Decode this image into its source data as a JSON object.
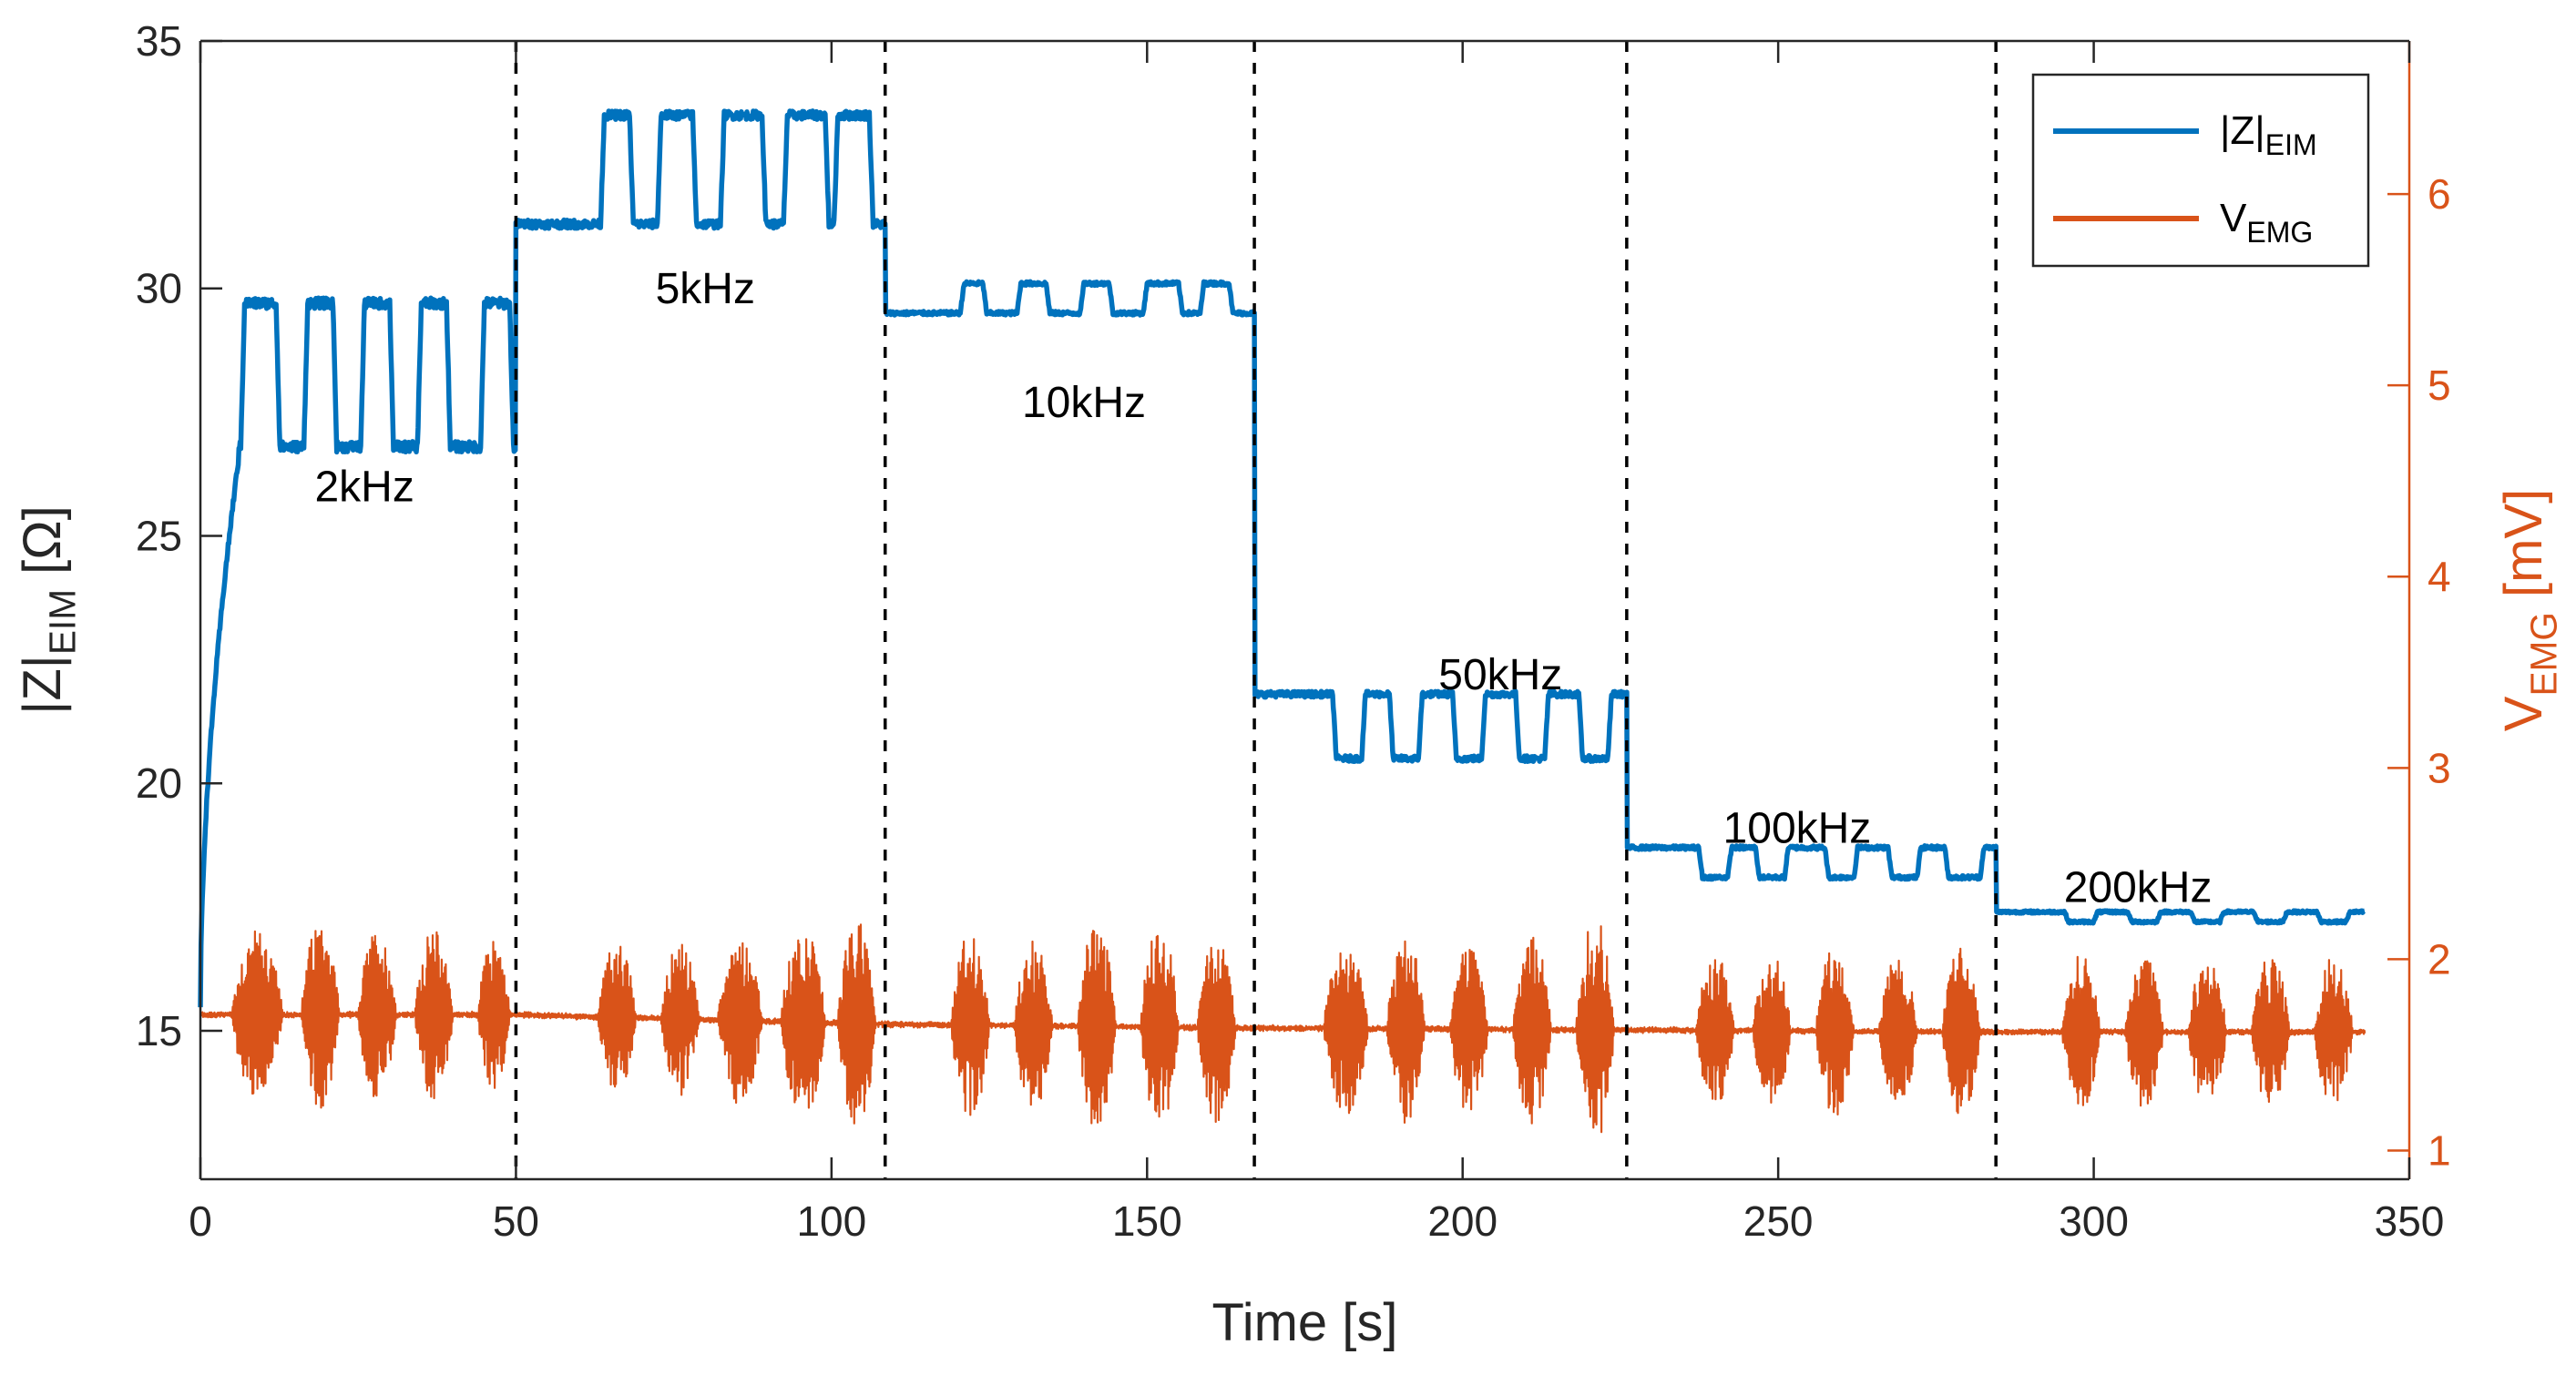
{
  "chart_data": {
    "type": "line",
    "title": "",
    "xlabel": "Time [s]",
    "ylabel_left": {
      "base": "|Z|",
      "sub": "EIM",
      "unit": " [Ω]"
    },
    "ylabel_right": {
      "base": "V",
      "sub": "EMG",
      "unit": " [mV]"
    },
    "xlim": [
      0,
      350
    ],
    "ylim_left": [
      12,
      35
    ],
    "ylim_right": [
      0.85,
      6.8
    ],
    "xticks": [
      "0",
      "50",
      "100",
      "150",
      "200",
      "250",
      "300",
      "350"
    ],
    "yticks_left": [
      "15",
      "20",
      "25",
      "30",
      "35"
    ],
    "yticks_right": [
      "1",
      "2",
      "3",
      "4",
      "5",
      "6"
    ],
    "vlines": [
      50,
      108.5,
      167,
      226,
      284.5
    ],
    "legend": {
      "position": "top-right",
      "entries": [
        {
          "base": "|Z|",
          "sub": "EIM",
          "color": "#0072BD"
        },
        {
          "base": "V",
          "sub": "EMG",
          "color": "#D95319"
        }
      ]
    },
    "annotations": [
      {
        "text": "2kHz",
        "x": 26,
        "y": 25.7
      },
      {
        "text": "5kHz",
        "x": 80,
        "y": 29.7
      },
      {
        "text": "10kHz",
        "x": 140,
        "y": 27.4
      },
      {
        "text": "50kHz",
        "x": 206,
        "y": 21.9
      },
      {
        "text": "100kHz",
        "x": 253,
        "y": 18.8
      },
      {
        "text": "200kHz",
        "x": 307,
        "y": 17.6
      }
    ],
    "series": [
      {
        "name": "|Z|EIM",
        "axis": "left",
        "color": "#0072BD",
        "end_x": 343,
        "ramp": {
          "x_start": 0,
          "x_end": 6,
          "y_start": 15.5,
          "y_end": 26.5
        },
        "segments": [
          {
            "label": "2kHz",
            "x_start": 6,
            "x_end": 50,
            "rest": 26.8,
            "active": 29.7,
            "bursts": [
              [
                7,
                12
              ],
              [
                17,
                21
              ],
              [
                26,
                30
              ],
              [
                35,
                39
              ],
              [
                45,
                49
              ]
            ]
          },
          {
            "label": "5kHz",
            "x_start": 50,
            "x_end": 108.5,
            "rest": 31.3,
            "active": 33.5,
            "bursts": [
              [
                64,
                68
              ],
              [
                73,
                78
              ],
              [
                83,
                89
              ],
              [
                93,
                99
              ],
              [
                101,
                106
              ]
            ]
          },
          {
            "label": "10kHz",
            "x_start": 108.5,
            "x_end": 167,
            "rest": 29.5,
            "active": 30.1,
            "bursts": [
              [
                121,
                124
              ],
              [
                130,
                134
              ],
              [
                140,
                144
              ],
              [
                150,
                155
              ],
              [
                159,
                163
              ]
            ]
          },
          {
            "label": "50kHz",
            "x_start": 167,
            "x_end": 226,
            "rest": 21.8,
            "active": 20.5,
            "bursts": [
              [
                180,
                184
              ],
              [
                189,
                193
              ],
              [
                199,
                203
              ],
              [
                209,
                213
              ],
              [
                219,
                223
              ]
            ]
          },
          {
            "label": "100kHz",
            "x_start": 226,
            "x_end": 284.5,
            "rest": 18.7,
            "active": 18.1,
            "bursts": [
              [
                238,
                242
              ],
              [
                247,
                251
              ],
              [
                258,
                262
              ],
              [
                268,
                272
              ],
              [
                277,
                282
              ]
            ]
          },
          {
            "label": "200kHz",
            "x_start": 284.5,
            "x_end": 343,
            "rest": 17.4,
            "active": 17.2,
            "bursts": [
              [
                296,
                300
              ],
              [
                306,
                310
              ],
              [
                316,
                320
              ],
              [
                326,
                330
              ],
              [
                336,
                340
              ]
            ]
          }
        ]
      },
      {
        "name": "VEMG",
        "axis": "right",
        "color": "#D95319",
        "end_x": 343,
        "baseline": [
          [
            0,
            1.71
          ],
          [
            50,
            1.71
          ],
          [
            108.5,
            1.66
          ],
          [
            167,
            1.64
          ],
          [
            226,
            1.63
          ],
          [
            284.5,
            1.62
          ],
          [
            343,
            1.62
          ]
        ],
        "bursts": [
          [
            5,
            13,
            0.45
          ],
          [
            16,
            22,
            0.5
          ],
          [
            25,
            31,
            0.45
          ],
          [
            34,
            40,
            0.45
          ],
          [
            44,
            49,
            0.4
          ],
          [
            63,
            69,
            0.4
          ],
          [
            73,
            79,
            0.4
          ],
          [
            82,
            89,
            0.45
          ],
          [
            92,
            99,
            0.5
          ],
          [
            101,
            107,
            0.55
          ],
          [
            119,
            125,
            0.5
          ],
          [
            129,
            135,
            0.45
          ],
          [
            139,
            145,
            0.55
          ],
          [
            149,
            155,
            0.55
          ],
          [
            158,
            164,
            0.5
          ],
          [
            178,
            185,
            0.45
          ],
          [
            188,
            194,
            0.5
          ],
          [
            198,
            204,
            0.45
          ],
          [
            208,
            214,
            0.5
          ],
          [
            218,
            224,
            0.6
          ],
          [
            237,
            243,
            0.4
          ],
          [
            246,
            252,
            0.4
          ],
          [
            256,
            262,
            0.45
          ],
          [
            266,
            272,
            0.4
          ],
          [
            276,
            282,
            0.45
          ],
          [
            295,
            301,
            0.4
          ],
          [
            305,
            311,
            0.4
          ],
          [
            315,
            321,
            0.4
          ],
          [
            325,
            331,
            0.4
          ],
          [
            335,
            341,
            0.4
          ]
        ]
      }
    ]
  }
}
